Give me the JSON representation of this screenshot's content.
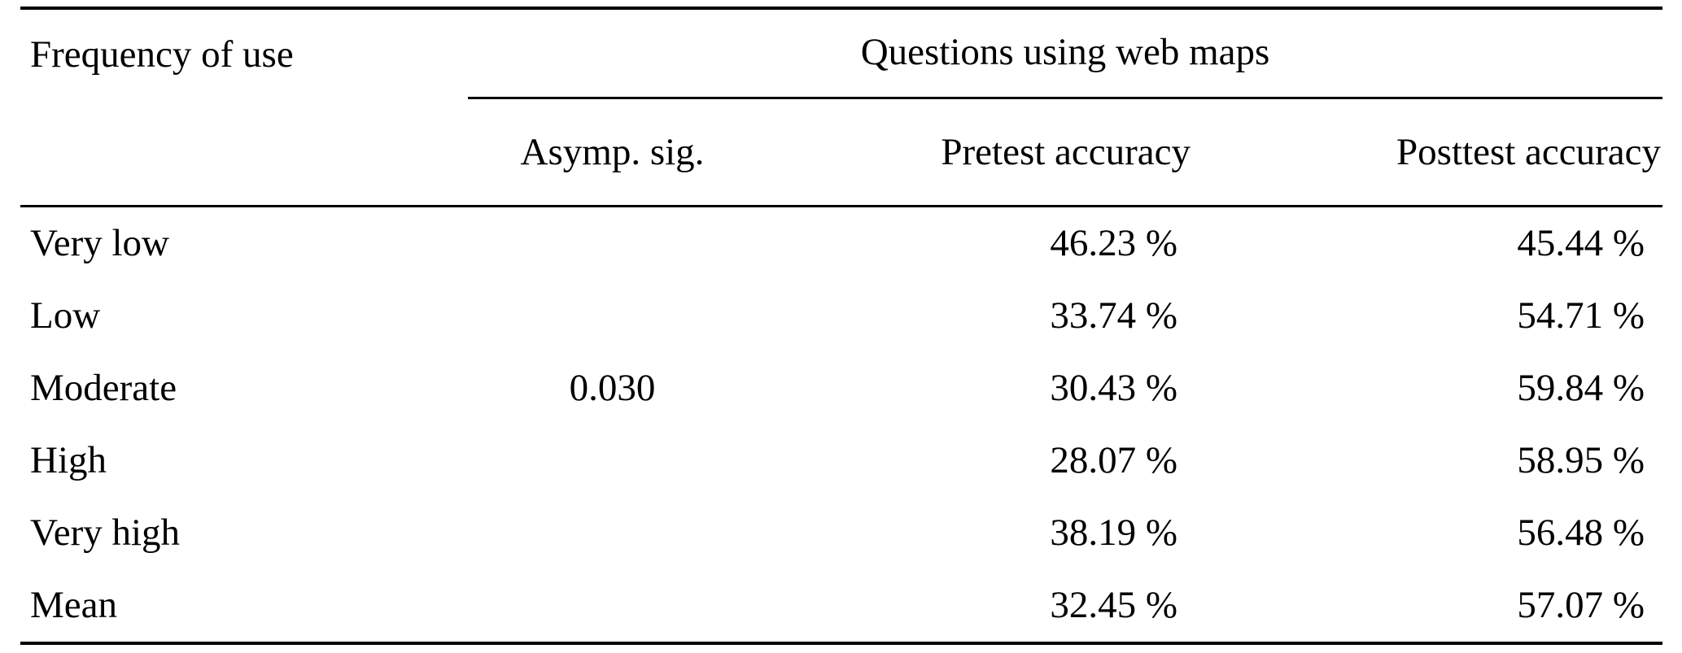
{
  "table": {
    "col1_header": "Frequency of use",
    "group_header": "Questions using web maps",
    "sub_headers": {
      "asymp_sig": "Asymp. sig.",
      "pretest": "Pretest accuracy",
      "posttest": "Posttest accuracy"
    },
    "rows": [
      {
        "label": "Very low",
        "asymp_sig": "",
        "pretest": "46.23 %",
        "posttest": "45.44 %"
      },
      {
        "label": "Low",
        "asymp_sig": "",
        "pretest": "33.74 %",
        "posttest": "54.71 %"
      },
      {
        "label": "Moderate",
        "asymp_sig": "0.030",
        "pretest": "30.43 %",
        "posttest": "59.84 %"
      },
      {
        "label": "High",
        "asymp_sig": "",
        "pretest": "28.07 %",
        "posttest": "58.95 %"
      },
      {
        "label": "Very high",
        "asymp_sig": "",
        "pretest": "38.19 %",
        "posttest": "56.48 %"
      },
      {
        "label": "Mean",
        "asymp_sig": "",
        "pretest": "32.45 %",
        "posttest": "57.07 %"
      }
    ],
    "colors": {
      "text": "#000000",
      "background": "#ffffff",
      "rule": "#000000"
    }
  }
}
